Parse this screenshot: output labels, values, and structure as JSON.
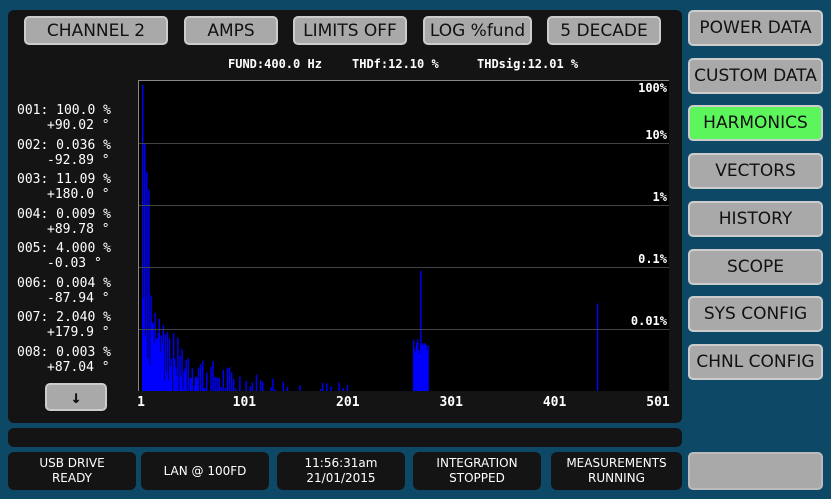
{
  "top_buttons": [
    "CHANNEL 2",
    "AMPS",
    "LIMITS OFF",
    "LOG %fund",
    "5 DECADE"
  ],
  "info": {
    "fund": "FUND:400.0 Hz",
    "thdf": "THDf:12.10 %",
    "thdsig": "THDsig:12.01 %"
  },
  "harmonics": [
    {
      "mag": "001: 100.0 %",
      "phase": "+90.02 °"
    },
    {
      "mag": "002: 0.036 %",
      "phase": "-92.89 °"
    },
    {
      "mag": "003: 11.09 %",
      "phase": "+180.0 °"
    },
    {
      "mag": "004: 0.009 %",
      "phase": "+89.78 °"
    },
    {
      "mag": "005: 4.000 %",
      "phase": "-0.03 °"
    },
    {
      "mag": "006: 0.004 %",
      "phase": "-87.94 °"
    },
    {
      "mag": "007: 2.040 %",
      "phase": "+179.9 °"
    },
    {
      "mag": "008: 0.003 %",
      "phase": "+87.04 °"
    }
  ],
  "scroll_down_icon": "arrow-down",
  "chart_data": {
    "type": "bar",
    "yscale": "log",
    "ylim": [
      0.001,
      100
    ],
    "xlim": [
      1,
      501
    ],
    "y_ticks": [
      "100%",
      "10%",
      "1%",
      "0.1%",
      "0.01%"
    ],
    "x_ticks": [
      "1",
      "101",
      "201",
      "301",
      "401",
      "501"
    ],
    "bar_color": "#0000ff",
    "peaks": [
      {
        "x": 1,
        "y": 100
      },
      {
        "x": 2,
        "y": 0.036
      },
      {
        "x": 3,
        "y": 11.09
      },
      {
        "x": 4,
        "y": 0.009
      },
      {
        "x": 5,
        "y": 4.0
      },
      {
        "x": 6,
        "y": 0.004
      },
      {
        "x": 7,
        "y": 2.04
      },
      {
        "x": 8,
        "y": 0.003
      },
      {
        "x": 270,
        "y": 0.1
      },
      {
        "x": 441,
        "y": 0.03
      }
    ]
  },
  "side_buttons": [
    {
      "label": "POWER DATA"
    },
    {
      "label": "CUSTOM DATA"
    },
    {
      "label": "HARMONICS",
      "active": true
    },
    {
      "label": "VECTORS"
    },
    {
      "label": "HISTORY"
    },
    {
      "label": "SCOPE"
    },
    {
      "label": "SYS CONFIG"
    },
    {
      "label": "CHNL CONFIG"
    }
  ],
  "status": [
    [
      "USB DRIVE",
      "READY"
    ],
    [
      "LAN @ 100FD",
      ""
    ],
    [
      "11:56:31am",
      "21/01/2015"
    ],
    [
      "INTEGRATION",
      "STOPPED"
    ],
    [
      "MEASUREMENTS",
      "RUNNING"
    ]
  ]
}
